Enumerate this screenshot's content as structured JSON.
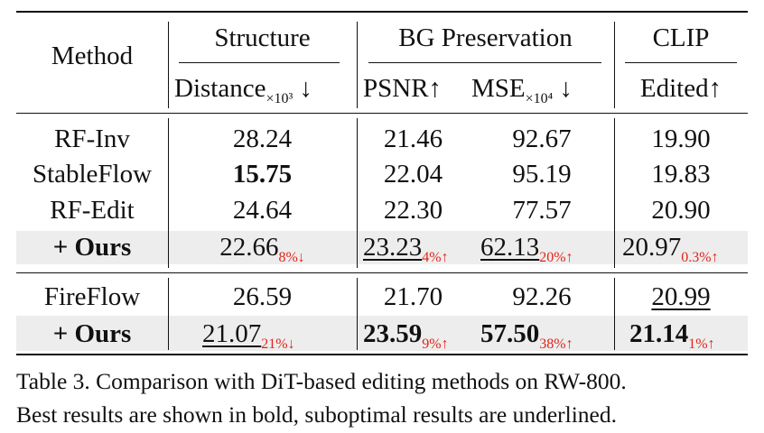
{
  "header": {
    "method": "Method",
    "group_structure": "Structure",
    "group_bg": "BG Preservation",
    "group_clip": "CLIP",
    "col_distance": "Distance",
    "col_distance_unit": "×10³",
    "col_distance_arrow": "↓",
    "col_psnr": "PSNR↑",
    "col_mse": "MSE",
    "col_mse_unit": "×10⁴",
    "col_mse_arrow": "↓",
    "col_edited": "Edited↑"
  },
  "rows": [
    {
      "method": "RF-Inv",
      "distance": "28.24",
      "psnr": "21.46",
      "mse": "92.67",
      "edited": "19.90"
    },
    {
      "method": "StableFlow",
      "distance": "15.75",
      "psnr": "22.04",
      "mse": "95.19",
      "edited": "19.83"
    },
    {
      "method": "RF-Edit",
      "distance": "24.64",
      "psnr": "22.30",
      "mse": "77.57",
      "edited": "20.90"
    },
    {
      "method": "+ Ours",
      "distance": "22.66",
      "distance_delta": "8%↓",
      "psnr": "23.23",
      "psnr_delta": "4%↑",
      "mse": "62.13",
      "mse_delta": "20%↑",
      "edited": "20.97",
      "edited_delta": "0.3%↑"
    },
    {
      "method": "FireFlow",
      "distance": "26.59",
      "psnr": "21.70",
      "mse": "92.26",
      "edited": "20.99"
    },
    {
      "method": "+ Ours",
      "distance": "21.07",
      "distance_delta": "21%↓",
      "psnr": "23.59",
      "psnr_delta": "9%↑",
      "mse": "57.50",
      "mse_delta": "38%↑",
      "edited": "21.14",
      "edited_delta": "1%↑"
    }
  ],
  "caption": {
    "line1": "Table 3. Comparison with DiT-based editing methods on RW-800.",
    "line2": "Best results are shown in bold, suboptimal results are underlined."
  },
  "colors": {
    "delta": "#e0241b",
    "highlight_row": "#ededed",
    "rule": "#111111"
  }
}
